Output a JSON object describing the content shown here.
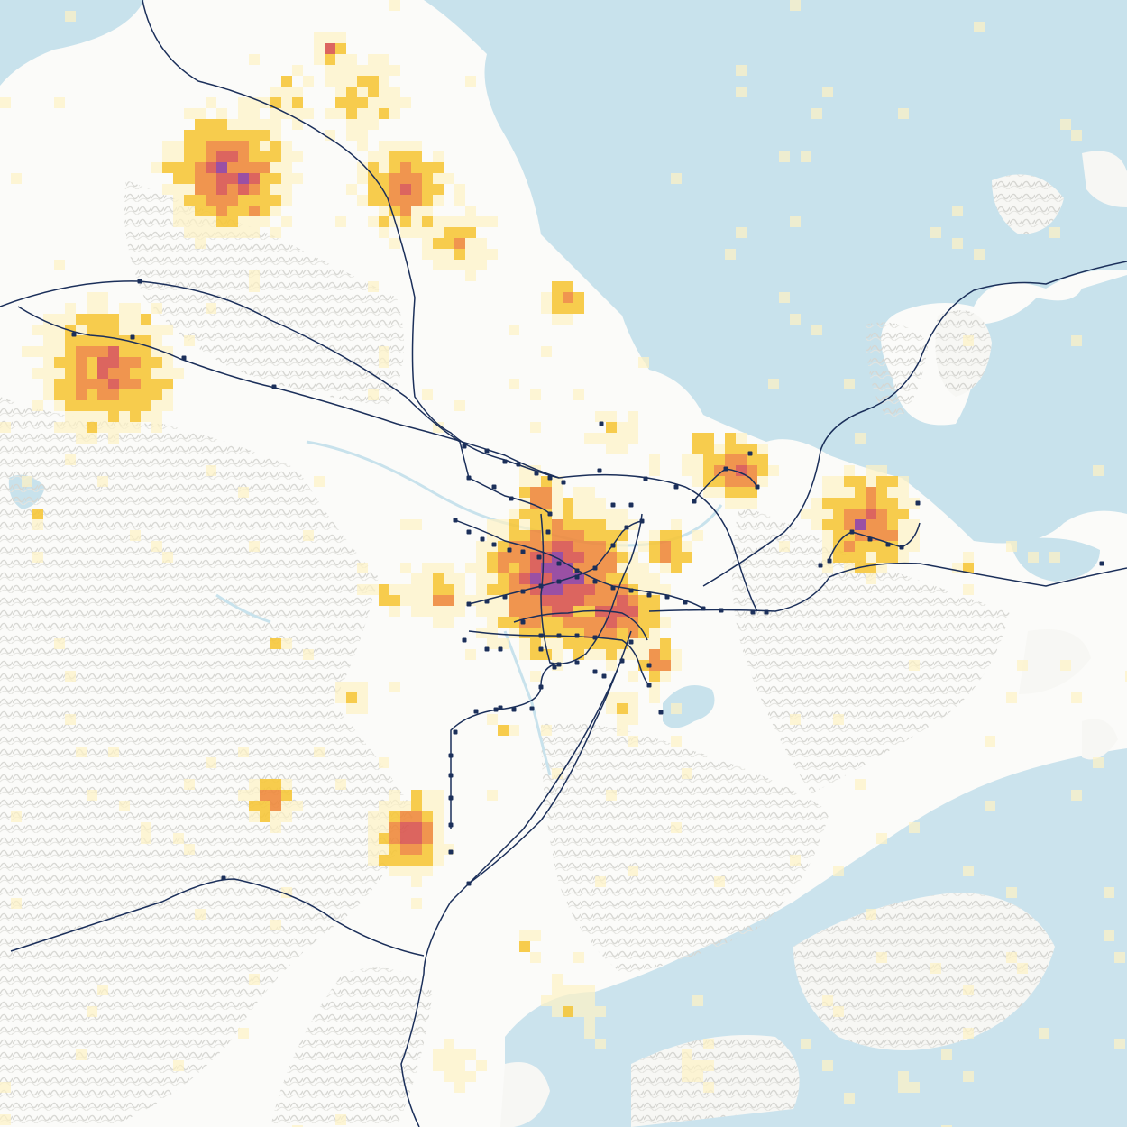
{
  "map": {
    "colors": {
      "land": "#fbfbf9",
      "water": "#c8e2ec",
      "hillshade": "#d8d8d4",
      "rail": "#1b2f5a",
      "station": "#1b2f5a",
      "density_low": "#fdf2c4",
      "density_mid": "#f6c63a",
      "density_high": "#ee8a3c",
      "density_higher": "#d8544e",
      "density_max": "#8f3d9a"
    },
    "legend": [],
    "labels": []
  }
}
